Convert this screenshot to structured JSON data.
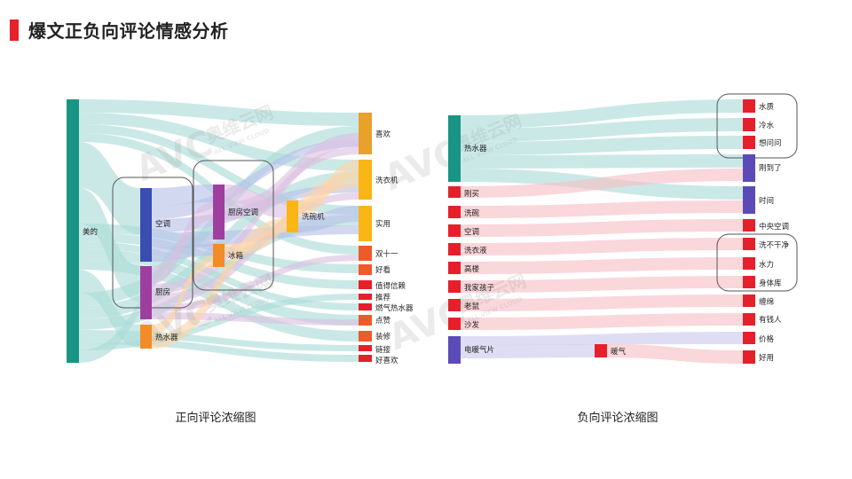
{
  "header": {
    "title": "爆文正负向评论情感分析"
  },
  "colors": {
    "title_bar": "#e8202a",
    "teal": "#1a9485",
    "blue": "#3a4db0",
    "purple": "#9e3fa0",
    "orange": "#f28c28",
    "gold": "#eaa12a",
    "amber": "#fbb514",
    "red_orange": "#ef5a28",
    "red": "#e6202a",
    "indigo": "#5b4bb8",
    "link_teal": "#a9dcd6",
    "link_blue": "#b8c0e8",
    "link_purple": "#dcbfe0",
    "link_orange": "#fbd3a8",
    "link_pink": "#f7bfc3",
    "link_lavender": "#ccc8ee"
  },
  "positive": {
    "caption": "正向评论浓缩图",
    "nodes": [
      {
        "id": "meide",
        "label": "美的",
        "level": 0,
        "color": "teal"
      },
      {
        "id": "kongtiao",
        "label": "空调",
        "level": 1,
        "color": "blue"
      },
      {
        "id": "chufang",
        "label": "厨房",
        "level": 1,
        "color": "purple"
      },
      {
        "id": "reshuiqi",
        "label": "热水器",
        "level": 1,
        "color": "orange"
      },
      {
        "id": "chufangkongtiao",
        "label": "厨房空调",
        "level": 2,
        "color": "purple"
      },
      {
        "id": "bingxiang",
        "label": "冰箱",
        "level": 2,
        "color": "orange"
      },
      {
        "id": "xiwanji",
        "label": "洗碗机",
        "level": 3,
        "color": "amber"
      },
      {
        "id": "xihuan",
        "label": "喜欢",
        "level": 4,
        "color": "gold"
      },
      {
        "id": "xiyiji",
        "label": "洗衣机",
        "level": 4,
        "color": "amber"
      },
      {
        "id": "shiyong",
        "label": "实用",
        "level": 4,
        "color": "amber"
      },
      {
        "id": "shuangshiyi",
        "label": "双十一",
        "level": 4,
        "color": "red_orange"
      },
      {
        "id": "haokan",
        "label": "好看",
        "level": 4,
        "color": "red_orange"
      },
      {
        "id": "zhidexinlai",
        "label": "值得信赖",
        "level": 4,
        "color": "red"
      },
      {
        "id": "tuijian",
        "label": "推荐",
        "level": 4,
        "color": "red"
      },
      {
        "id": "ranqireshuiqi",
        "label": "燃气热水器",
        "level": 4,
        "color": "red"
      },
      {
        "id": "dianzan",
        "label": "点赞",
        "level": 4,
        "color": "red_orange"
      },
      {
        "id": "zhuangxiu",
        "label": "装修",
        "level": 4,
        "color": "red_orange"
      },
      {
        "id": "lianjie",
        "label": "链接",
        "level": 4,
        "color": "red"
      },
      {
        "id": "haoxihuan",
        "label": "好喜欢",
        "level": 4,
        "color": "red"
      }
    ]
  },
  "negative": {
    "caption": "负向评论浓缩图",
    "nodes": [
      {
        "id": "reshuiqi",
        "label": "热水器",
        "level": 0,
        "color": "teal"
      },
      {
        "id": "gangmai",
        "label": "刚买",
        "level": 0,
        "color": "red"
      },
      {
        "id": "xiwan",
        "label": "洗碗",
        "level": 0,
        "color": "red"
      },
      {
        "id": "kongtiao",
        "label": "空调",
        "level": 0,
        "color": "red"
      },
      {
        "id": "xiyiye",
        "label": "洗衣液",
        "level": 0,
        "color": "red"
      },
      {
        "id": "gaolou",
        "label": "高楼",
        "level": 0,
        "color": "red"
      },
      {
        "id": "wojiahaizi",
        "label": "我家孩子",
        "level": 0,
        "color": "red"
      },
      {
        "id": "laoshu",
        "label": "老鼠",
        "level": 0,
        "color": "red"
      },
      {
        "id": "shafa",
        "label": "沙发",
        "level": 0,
        "color": "red"
      },
      {
        "id": "diannuanqipian",
        "label": "电暖气片",
        "level": 0,
        "color": "indigo"
      },
      {
        "id": "nuanqi",
        "label": "暖气",
        "level": 1,
        "color": "red"
      },
      {
        "id": "shuizhi",
        "label": "水质",
        "level": 2,
        "color": "red"
      },
      {
        "id": "lengshui",
        "label": "冷水",
        "level": 2,
        "color": "red"
      },
      {
        "id": "xiangwenwen",
        "label": "想问问",
        "level": 2,
        "color": "red"
      },
      {
        "id": "gangdaole",
        "label": "刚到了",
        "level": 2,
        "color": "indigo"
      },
      {
        "id": "shijian",
        "label": "时间",
        "level": 2,
        "color": "indigo"
      },
      {
        "id": "zhongyangkongtiao",
        "label": "中央空调",
        "level": 2,
        "color": "red"
      },
      {
        "id": "xibuganjing",
        "label": "洗不干净",
        "level": 2,
        "color": "red"
      },
      {
        "id": "shuili",
        "label": "水力",
        "level": 2,
        "color": "red"
      },
      {
        "id": "shentiku",
        "label": "身体库",
        "level": 2,
        "color": "red"
      },
      {
        "id": "chanmian",
        "label": "缠绵",
        "level": 2,
        "color": "red"
      },
      {
        "id": "youqianren",
        "label": "有钱人",
        "level": 2,
        "color": "red"
      },
      {
        "id": "jiage",
        "label": "价格",
        "level": 2,
        "color": "red"
      },
      {
        "id": "haoyong",
        "label": "好用",
        "level": 2,
        "color": "red"
      }
    ]
  },
  "watermark": {
    "brand_cn": "奥维云网",
    "brand_en": "ALL VIEW CLOUD",
    "logo": "AVC"
  }
}
